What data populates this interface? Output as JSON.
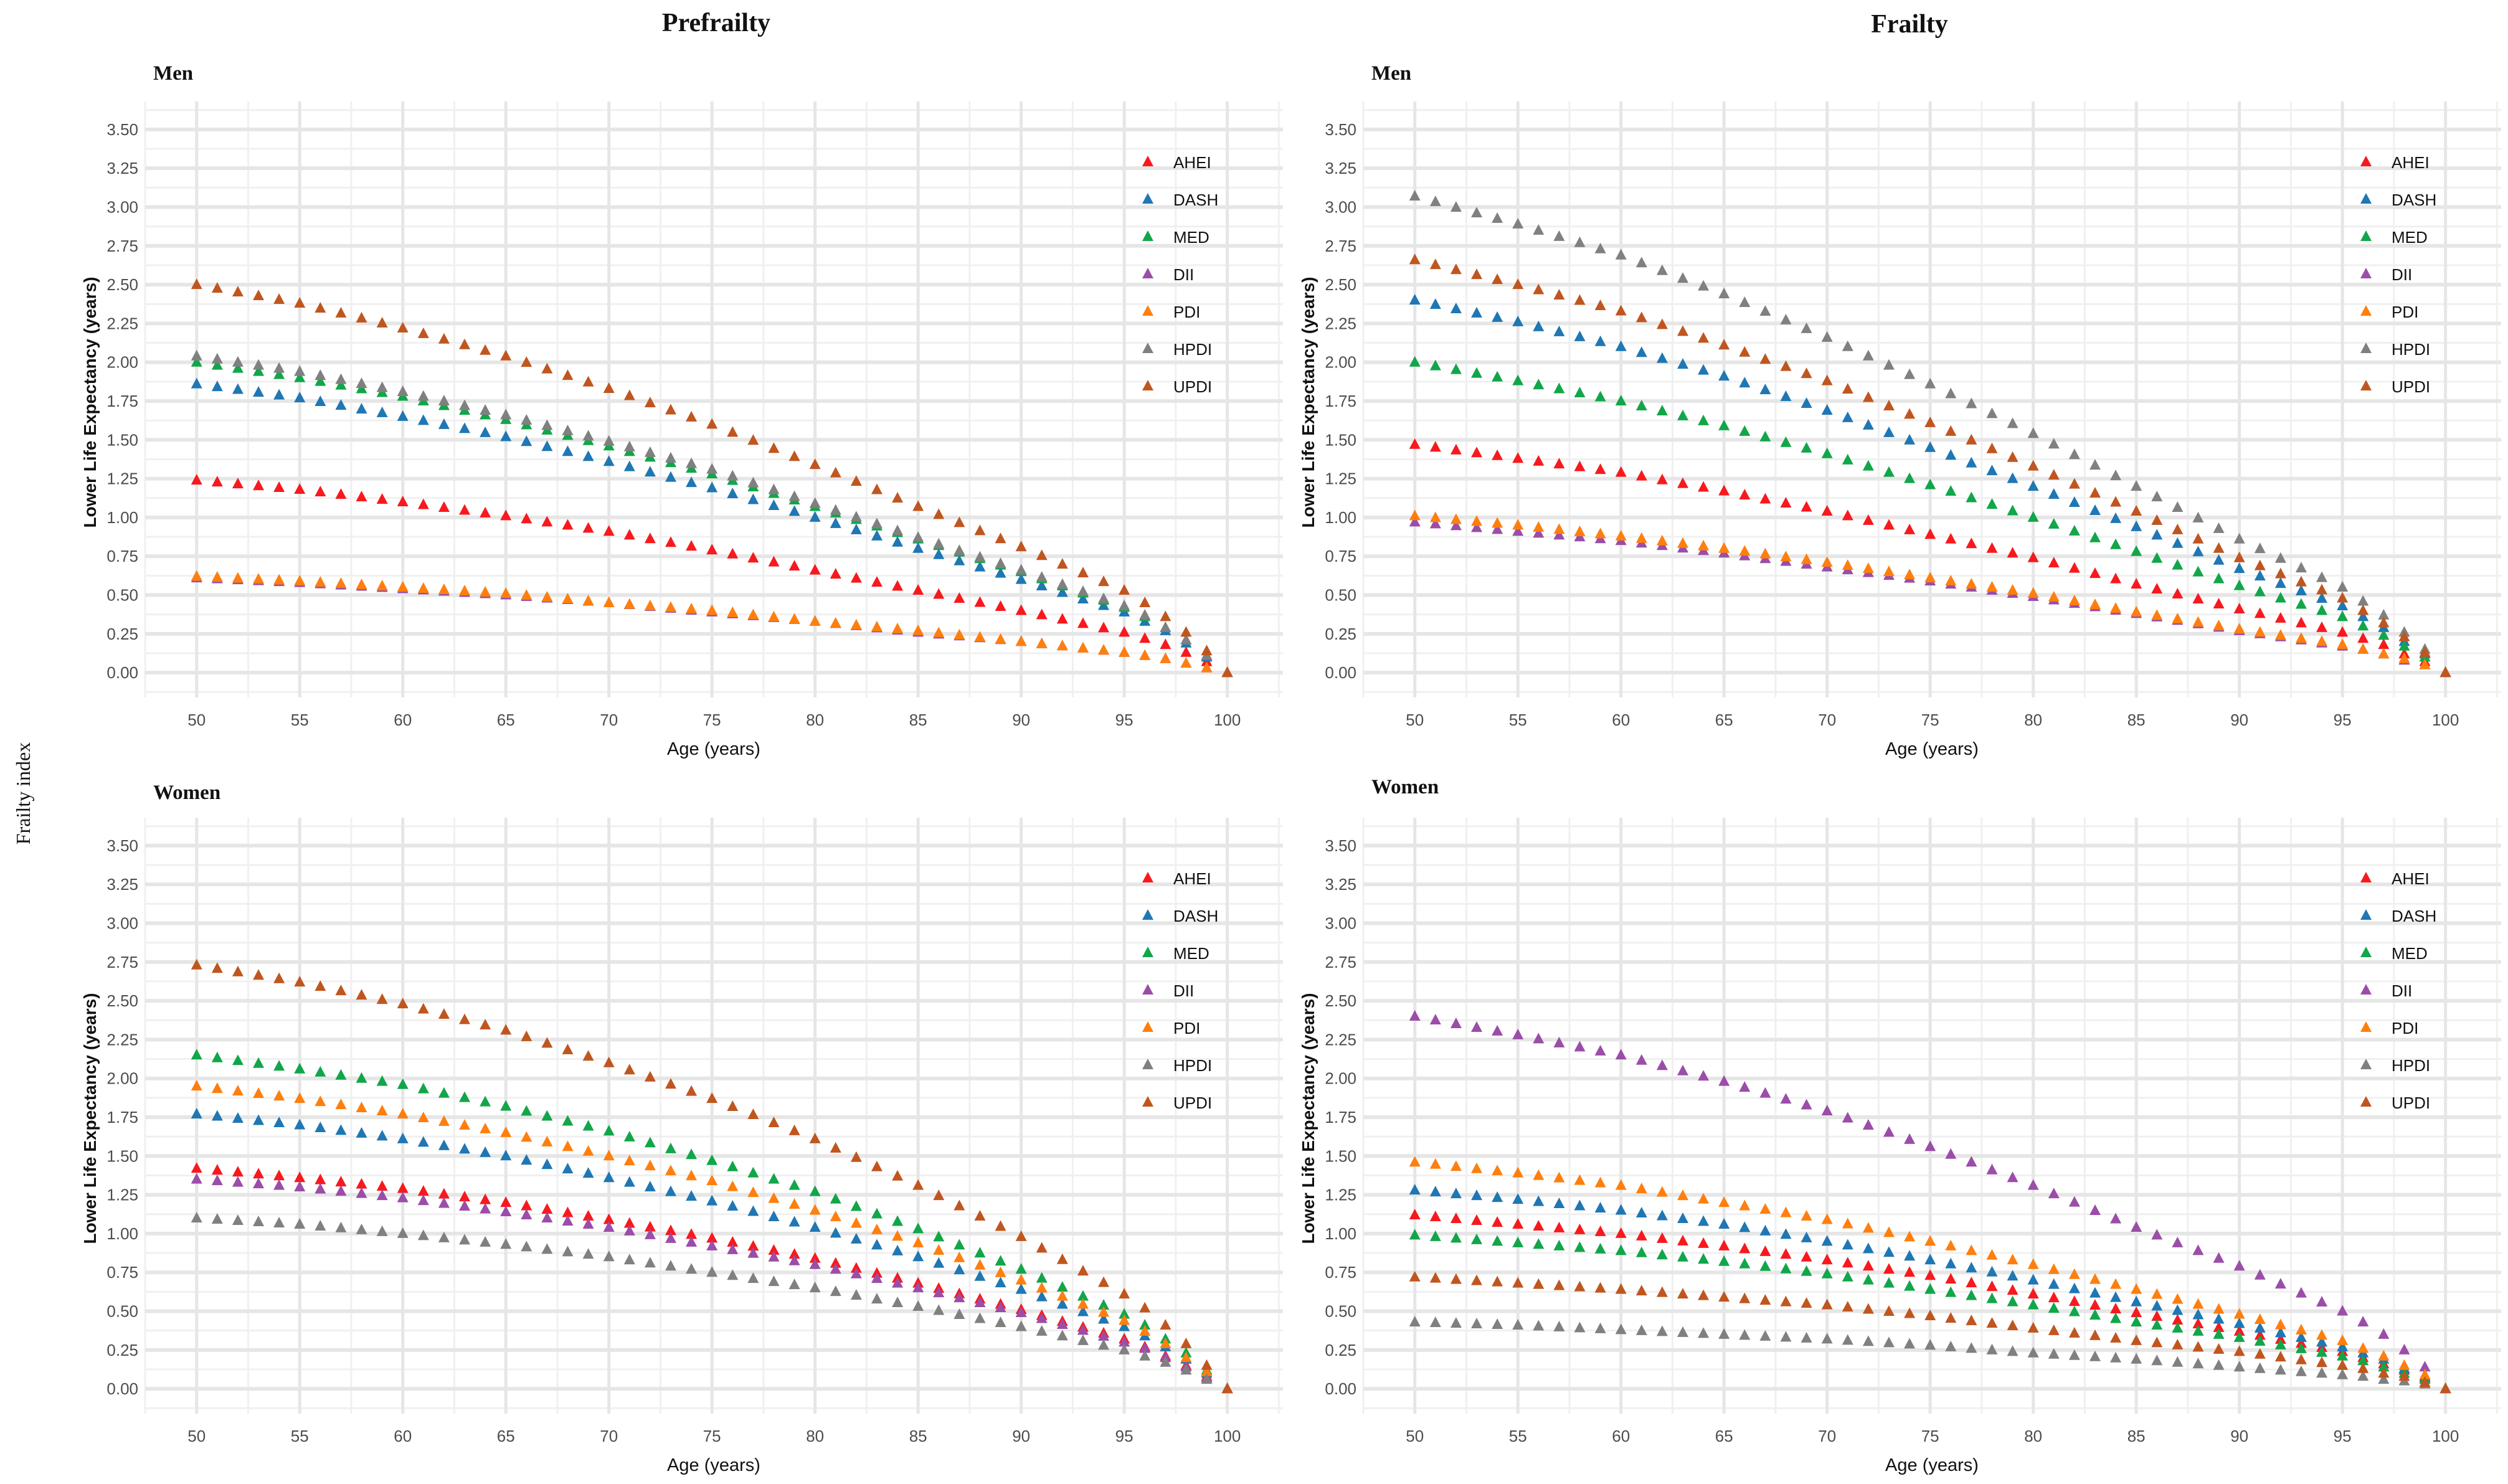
{
  "column_titles": [
    "Prefrailty",
    "Frailty"
  ],
  "side_title": "Frailty index",
  "colors": {
    "AHEI": "#f8191e",
    "DASH": "#1f77b4",
    "MED": "#12a64a",
    "DII": "#9b4da8",
    "PDI": "#ff7f0e",
    "HPDI": "#808080",
    "UPDI": "#c0561f"
  },
  "chart_data": [
    {
      "type": "scatter",
      "title": "Men",
      "column": "Prefrailty",
      "xlabel": "Age (years)",
      "ylabel": "Lower Life Expectancy (years)",
      "xlim": [
        47.5,
        102.7
      ],
      "ylim": [
        -0.16,
        3.68
      ],
      "grid": true,
      "legend": "top-right",
      "xticks": [
        "50",
        "55",
        "60",
        "65",
        "70",
        "75",
        "80",
        "85",
        "90",
        "95",
        "100"
      ],
      "yticks": [
        "0.00",
        "0.25",
        "0.50",
        "0.75",
        "1.00",
        "1.25",
        "1.50",
        "1.75",
        "2.00",
        "2.25",
        "2.50",
        "2.75",
        "3.00",
        "3.25",
        "3.50"
      ],
      "x": [
        50,
        55,
        60,
        65,
        70,
        75,
        80,
        85,
        90,
        95,
        96,
        97,
        98,
        99,
        100
      ],
      "series": [
        {
          "name": "AHEI",
          "values": [
            1.24,
            1.18,
            1.1,
            1.01,
            0.91,
            0.79,
            0.66,
            0.53,
            0.4,
            0.26,
            0.22,
            0.18,
            0.13,
            0.07,
            0
          ]
        },
        {
          "name": "DASH",
          "values": [
            1.86,
            1.77,
            1.65,
            1.52,
            1.36,
            1.19,
            1.0,
            0.8,
            0.6,
            0.39,
            0.33,
            0.27,
            0.19,
            0.1,
            0
          ]
        },
        {
          "name": "MED",
          "values": [
            2.0,
            1.9,
            1.78,
            1.63,
            1.46,
            1.28,
            1.07,
            0.86,
            0.65,
            0.42,
            0.36,
            0.29,
            0.21,
            0.11,
            0
          ]
        },
        {
          "name": "DII",
          "values": [
            0.61,
            0.58,
            0.54,
            0.5,
            0.45,
            0.39,
            0.33,
            0.26,
            0.2,
            0.13,
            0.11,
            0.09,
            0.06,
            0.03,
            0
          ]
        },
        {
          "name": "PDI",
          "values": [
            0.62,
            0.59,
            0.55,
            0.51,
            0.45,
            0.4,
            0.33,
            0.27,
            0.2,
            0.13,
            0.11,
            0.09,
            0.06,
            0.03,
            0
          ]
        },
        {
          "name": "HPDI",
          "values": [
            2.04,
            1.94,
            1.81,
            1.66,
            1.49,
            1.31,
            1.09,
            0.87,
            0.66,
            0.43,
            0.37,
            0.29,
            0.21,
            0.11,
            0
          ]
        },
        {
          "name": "UPDI",
          "values": [
            2.5,
            2.38,
            2.22,
            2.04,
            1.83,
            1.6,
            1.34,
            1.07,
            0.81,
            0.53,
            0.45,
            0.36,
            0.26,
            0.14,
            0
          ]
        }
      ]
    },
    {
      "type": "scatter",
      "title": "Men",
      "column": "Frailty",
      "xlabel": "Age (years)",
      "ylabel": "Lower Life Expectancy (years)",
      "xlim": [
        47.5,
        102.7
      ],
      "ylim": [
        -0.16,
        3.68
      ],
      "grid": true,
      "legend": "top-right",
      "xticks": [
        "50",
        "55",
        "60",
        "65",
        "70",
        "75",
        "80",
        "85",
        "90",
        "95",
        "100"
      ],
      "yticks": [
        "0.00",
        "0.25",
        "0.50",
        "0.75",
        "1.00",
        "1.25",
        "1.50",
        "1.75",
        "2.00",
        "2.25",
        "2.50",
        "2.75",
        "3.00",
        "3.25",
        "3.50"
      ],
      "x": [
        50,
        55,
        60,
        65,
        70,
        75,
        80,
        85,
        90,
        95,
        96,
        97,
        98,
        99,
        100
      ],
      "series": [
        {
          "name": "AHEI",
          "values": [
            1.47,
            1.38,
            1.29,
            1.17,
            1.04,
            0.89,
            0.74,
            0.57,
            0.41,
            0.26,
            0.22,
            0.18,
            0.12,
            0.07,
            0
          ]
        },
        {
          "name": "DASH",
          "values": [
            2.4,
            2.26,
            2.1,
            1.91,
            1.69,
            1.45,
            1.2,
            0.94,
            0.67,
            0.43,
            0.36,
            0.29,
            0.2,
            0.12,
            0
          ]
        },
        {
          "name": "MED",
          "values": [
            2.0,
            1.88,
            1.75,
            1.59,
            1.41,
            1.21,
            1.0,
            0.78,
            0.56,
            0.36,
            0.3,
            0.24,
            0.17,
            0.1,
            0
          ]
        },
        {
          "name": "DII",
          "values": [
            0.97,
            0.91,
            0.85,
            0.77,
            0.68,
            0.59,
            0.49,
            0.38,
            0.27,
            0.17,
            0.15,
            0.12,
            0.08,
            0.05,
            0
          ]
        },
        {
          "name": "PDI",
          "values": [
            1.01,
            0.95,
            0.88,
            0.8,
            0.71,
            0.61,
            0.51,
            0.39,
            0.28,
            0.18,
            0.15,
            0.12,
            0.09,
            0.05,
            0
          ]
        },
        {
          "name": "HPDI",
          "values": [
            3.07,
            2.89,
            2.69,
            2.44,
            2.16,
            1.86,
            1.54,
            1.2,
            0.86,
            0.55,
            0.46,
            0.37,
            0.26,
            0.15,
            0
          ]
        },
        {
          "name": "UPDI",
          "values": [
            2.66,
            2.5,
            2.33,
            2.11,
            1.88,
            1.61,
            1.33,
            1.04,
            0.74,
            0.48,
            0.4,
            0.32,
            0.23,
            0.13,
            0
          ]
        }
      ]
    },
    {
      "type": "scatter",
      "title": "Women",
      "column": "Prefrailty",
      "xlabel": "Age (years)",
      "ylabel": "Lower Life Expectancy (years)",
      "xlim": [
        47.5,
        102.7
      ],
      "ylim": [
        -0.16,
        3.68
      ],
      "grid": true,
      "legend": "top-right",
      "xticks": [
        "50",
        "55",
        "60",
        "65",
        "70",
        "75",
        "80",
        "85",
        "90",
        "95",
        "100"
      ],
      "yticks": [
        "0.00",
        "0.25",
        "0.50",
        "0.75",
        "1.00",
        "1.25",
        "1.50",
        "1.75",
        "2.00",
        "2.25",
        "2.50",
        "2.75",
        "3.00",
        "3.25",
        "3.50"
      ],
      "x": [
        50,
        55,
        60,
        65,
        70,
        75,
        80,
        85,
        90,
        95,
        96,
        97,
        98,
        99,
        100
      ],
      "series": [
        {
          "name": "AHEI",
          "values": [
            1.42,
            1.36,
            1.29,
            1.2,
            1.09,
            0.97,
            0.84,
            0.68,
            0.51,
            0.32,
            0.27,
            0.21,
            0.15,
            0.08,
            0
          ]
        },
        {
          "name": "DASH",
          "values": [
            1.77,
            1.7,
            1.61,
            1.5,
            1.36,
            1.21,
            1.04,
            0.85,
            0.64,
            0.4,
            0.34,
            0.27,
            0.19,
            0.1,
            0
          ]
        },
        {
          "name": "MED",
          "values": [
            2.15,
            2.06,
            1.96,
            1.82,
            1.66,
            1.47,
            1.27,
            1.03,
            0.77,
            0.48,
            0.41,
            0.32,
            0.23,
            0.12,
            0
          ]
        },
        {
          "name": "DII",
          "values": [
            1.35,
            1.3,
            1.23,
            1.14,
            1.04,
            0.92,
            0.8,
            0.65,
            0.49,
            0.3,
            0.26,
            0.2,
            0.14,
            0.07,
            0
          ]
        },
        {
          "name": "PDI",
          "values": [
            1.95,
            1.87,
            1.77,
            1.65,
            1.5,
            1.34,
            1.15,
            0.94,
            0.7,
            0.44,
            0.37,
            0.29,
            0.2,
            0.11,
            0
          ]
        },
        {
          "name": "HPDI",
          "values": [
            1.1,
            1.06,
            1.0,
            0.93,
            0.85,
            0.75,
            0.65,
            0.53,
            0.4,
            0.25,
            0.21,
            0.17,
            0.12,
            0.06,
            0
          ]
        },
        {
          "name": "UPDI",
          "values": [
            2.73,
            2.62,
            2.48,
            2.31,
            2.1,
            1.87,
            1.61,
            1.31,
            0.98,
            0.61,
            0.52,
            0.41,
            0.29,
            0.15,
            0
          ]
        }
      ]
    },
    {
      "type": "scatter",
      "title": "Women",
      "column": "Frailty",
      "xlabel": "Age (years)",
      "ylabel": "Lower Life Expectancy (years)",
      "xlim": [
        47.5,
        102.7
      ],
      "ylim": [
        -0.16,
        3.68
      ],
      "grid": true,
      "legend": "top-right",
      "xticks": [
        "50",
        "55",
        "60",
        "65",
        "70",
        "75",
        "80",
        "85",
        "90",
        "95",
        "100"
      ],
      "yticks": [
        "0.00",
        "0.25",
        "0.50",
        "0.75",
        "1.00",
        "1.25",
        "1.50",
        "1.75",
        "2.00",
        "2.25",
        "2.50",
        "2.75",
        "3.00",
        "3.25",
        "3.50"
      ],
      "x": [
        50,
        55,
        60,
        65,
        70,
        75,
        80,
        85,
        90,
        95,
        96,
        97,
        98,
        99,
        100
      ],
      "series": [
        {
          "name": "AHEI",
          "values": [
            1.12,
            1.06,
            1.0,
            0.92,
            0.83,
            0.73,
            0.61,
            0.49,
            0.37,
            0.24,
            0.2,
            0.16,
            0.12,
            0.07,
            0
          ]
        },
        {
          "name": "DASH",
          "values": [
            1.28,
            1.22,
            1.15,
            1.06,
            0.95,
            0.83,
            0.7,
            0.56,
            0.42,
            0.27,
            0.23,
            0.19,
            0.13,
            0.08,
            0
          ]
        },
        {
          "name": "MED",
          "values": [
            0.99,
            0.94,
            0.89,
            0.82,
            0.74,
            0.64,
            0.54,
            0.43,
            0.33,
            0.21,
            0.18,
            0.14,
            0.1,
            0.06,
            0
          ]
        },
        {
          "name": "DII",
          "values": [
            2.4,
            2.28,
            2.15,
            1.98,
            1.79,
            1.56,
            1.31,
            1.04,
            0.79,
            0.5,
            0.43,
            0.35,
            0.25,
            0.14,
            0
          ]
        },
        {
          "name": "PDI",
          "values": [
            1.46,
            1.39,
            1.31,
            1.2,
            1.09,
            0.95,
            0.8,
            0.64,
            0.48,
            0.31,
            0.26,
            0.21,
            0.15,
            0.09,
            0
          ]
        },
        {
          "name": "HPDI",
          "values": [
            0.43,
            0.41,
            0.38,
            0.35,
            0.32,
            0.28,
            0.23,
            0.19,
            0.14,
            0.09,
            0.08,
            0.06,
            0.05,
            0.03,
            0
          ]
        },
        {
          "name": "UPDI",
          "values": [
            0.72,
            0.68,
            0.64,
            0.59,
            0.54,
            0.47,
            0.39,
            0.31,
            0.24,
            0.15,
            0.13,
            0.1,
            0.08,
            0.04,
            0
          ]
        }
      ]
    }
  ]
}
